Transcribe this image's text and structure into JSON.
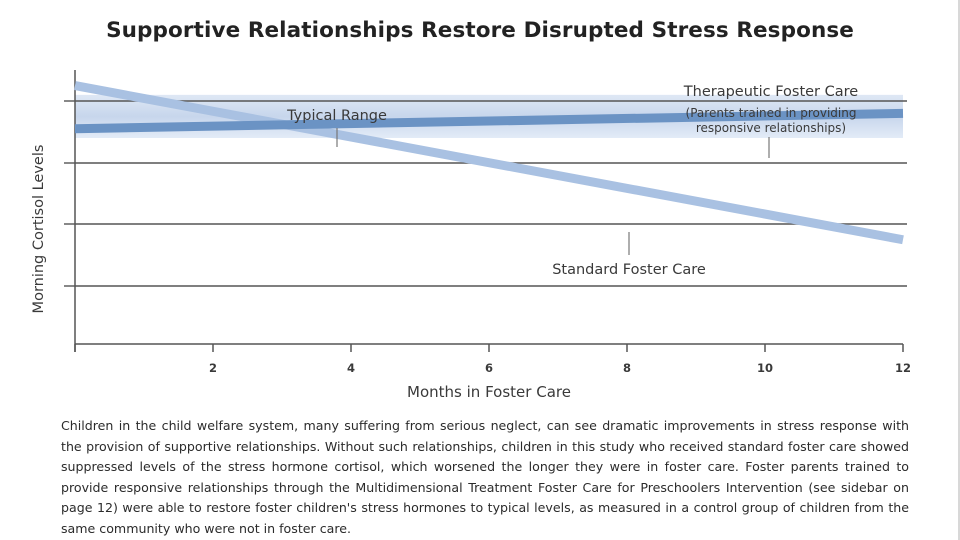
{
  "chart_data": {
    "type": "line",
    "title": "Supportive Relationships Restore Disrupted Stress Response",
    "xlabel": "Months in Foster Care",
    "ylabel": "Morning Cortisol Levels",
    "xlim": [
      0,
      12
    ],
    "x_ticks": [
      2,
      4,
      6,
      8,
      10,
      12
    ],
    "y_tick_labels": [],
    "band": {
      "name": "Typical Range",
      "y_range": [
        3.4,
        4.1
      ]
    },
    "series": [
      {
        "name": "Therapeutic Foster Care",
        "note": "(Parents trained in providing responsive relationships)",
        "color": "#6b93c4",
        "x": [
          0,
          12
        ],
        "y": [
          3.55,
          3.8
        ]
      },
      {
        "name": "Standard Foster Care",
        "color": "#a9c1e2",
        "x": [
          0,
          12
        ],
        "y": [
          4.25,
          1.75
        ]
      }
    ],
    "grid": "horizontal"
  },
  "caption": "Children in the child welfare system, many suffering from serious neglect, can see dramatic improvements in stress response with the provision of supportive relationships. Without such relationships, children in this study who received standard foster care showed suppressed levels of the stress hormone cortisol, which worsened the longer they were in foster care. Foster parents trained to provide responsive relationships through the Multidimensional Treatment Foster Care for Preschoolers Intervention (see sidebar on page 12) were able to restore foster children's stress hormones to typical levels, as measured in a control group of children from the same community who were not in foster care."
}
